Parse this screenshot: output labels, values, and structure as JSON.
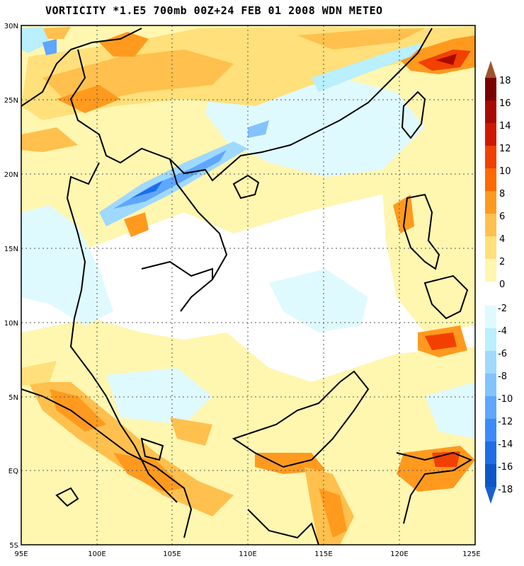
{
  "title": "VORTICITY *1.E5 700mb 00Z+24 FEB 01 2008 WDN METEO",
  "map": {
    "lon_range": [
      95,
      125
    ],
    "lat_range": [
      -5,
      30
    ],
    "lat_ticks": [
      "30N",
      "25N",
      "20N",
      "15N",
      "10N",
      "5N",
      "EQ",
      "5S"
    ],
    "lon_ticks": [
      "95E",
      "100E",
      "105E",
      "110E",
      "115E",
      "120E",
      "125E"
    ],
    "colors": {
      "pos": [
        "#fff6b0",
        "#ffe07a",
        "#ffc04d",
        "#ff9a1e",
        "#ff6a00",
        "#f24000",
        "#d01800",
        "#a80a00",
        "#7a0000"
      ],
      "neg": [
        "#dffaff",
        "#b9efff",
        "#9fd9ff",
        "#83c3ff",
        "#5ea6ff",
        "#3d8bfa",
        "#1d6fe8",
        "#0e56c8"
      ]
    }
  },
  "legend": {
    "positive_labels": [
      "18",
      "16",
      "14",
      "12",
      "10",
      "8",
      "6",
      "4",
      "2",
      "0"
    ],
    "negative_labels": [
      "-2",
      "-4",
      "-6",
      "-8",
      "-10",
      "-12",
      "-14",
      "-16",
      "-18"
    ],
    "positive_colors": [
      "#7a0000",
      "#a80a00",
      "#d01800",
      "#f24000",
      "#ff6a00",
      "#ff9a1e",
      "#ffc04d",
      "#ffe07a",
      "#fff6b0"
    ],
    "negative_colors": [
      "#dffaff",
      "#b9efff",
      "#9fd9ff",
      "#83c3ff",
      "#5ea6ff",
      "#3d8bfa",
      "#1d6fe8",
      "#0e56c8"
    ],
    "top_arrow_color": "#a0522d",
    "bottom_arrow_color": "#1a5fd0"
  }
}
